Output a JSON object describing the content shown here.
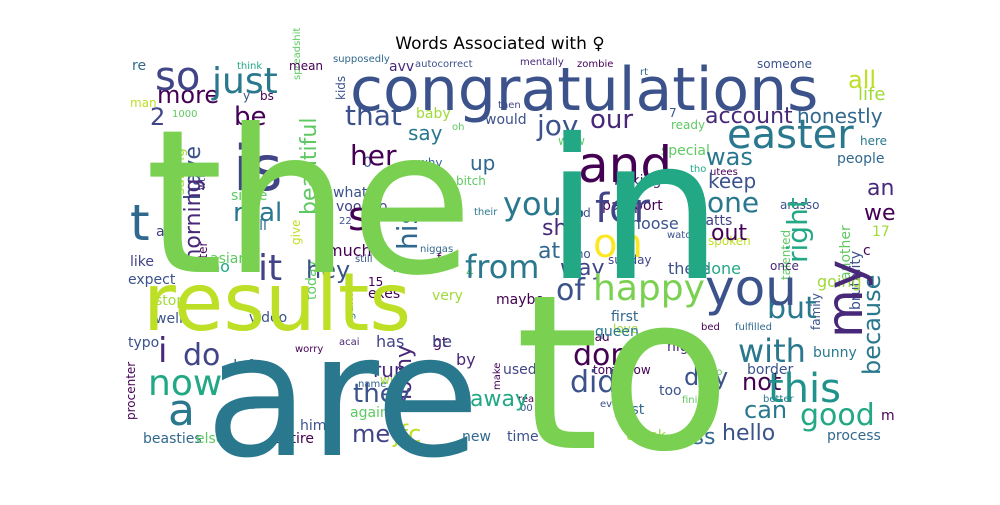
{
  "chart_data": {
    "type": "wordcloud",
    "title": "Words Associated with ♀",
    "words": [
      {
        "text": "the",
        "color": "#7ad151"
      },
      {
        "text": "in",
        "color": "#22a884"
      },
      {
        "text": "are",
        "color": "#2a788e"
      },
      {
        "text": "to",
        "color": "#7ad151"
      },
      {
        "text": "results",
        "color": "#bddf26"
      },
      {
        "text": "congratulations",
        "color": "#3b528b"
      },
      {
        "text": "is",
        "color": "#414487"
      },
      {
        "text": "and",
        "color": "#440154"
      },
      {
        "text": "you",
        "color": "#3b528b"
      },
      {
        "text": "this",
        "color": "#21918c"
      },
      {
        "text": "easter",
        "color": "#2a788e"
      },
      {
        "text": "my",
        "color": "#482878"
      },
      {
        "text": "for",
        "color": "#414487"
      },
      {
        "text": "on",
        "color": "#fde725"
      },
      {
        "text": "so",
        "color": "#414487"
      },
      {
        "text": "just",
        "color": "#2a788e"
      },
      {
        "text": "happy",
        "color": "#7ad151"
      },
      {
        "text": "now",
        "color": "#22a884"
      },
      {
        "text": "your",
        "color": "#2a788e"
      },
      {
        "text": "a",
        "color": "#2a788e"
      },
      {
        "text": "it",
        "color": "#414487"
      },
      {
        "text": "from",
        "color": "#2a788e"
      },
      {
        "text": "of",
        "color": "#3b528b"
      },
      {
        "text": "with",
        "color": "#2a788e"
      },
      {
        "text": "good",
        "color": "#22a884"
      },
      {
        "text": "all",
        "color": "#bddf26"
      },
      {
        "text": "i",
        "color": "#482878"
      },
      {
        "text": "do",
        "color": "#414487"
      },
      {
        "text": "did",
        "color": "#3b528b"
      },
      {
        "text": "don",
        "color": "#440154"
      },
      {
        "text": "s",
        "color": "#440154"
      },
      {
        "text": "t",
        "color": "#31688e"
      },
      {
        "text": "be",
        "color": "#440154"
      },
      {
        "text": "more",
        "color": "#440154"
      },
      {
        "text": "2",
        "color": "#414487"
      },
      {
        "text": "that",
        "color": "#3b528b"
      },
      {
        "text": "joy",
        "color": "#3b528b"
      },
      {
        "text": "our",
        "color": "#482878"
      },
      {
        "text": "account",
        "color": "#482878"
      },
      {
        "text": "honestly",
        "color": "#31688e"
      },
      {
        "text": "life",
        "color": "#a0da39"
      },
      {
        "text": "her",
        "color": "#440154"
      },
      {
        "text": "his",
        "color": "#31688e"
      },
      {
        "text": "she",
        "color": "#482878"
      },
      {
        "text": "was",
        "color": "#2a788e"
      },
      {
        "text": "one",
        "color": "#2a788e"
      },
      {
        "text": "right",
        "color": "#22a884"
      },
      {
        "text": "out",
        "color": "#440154"
      },
      {
        "text": "but",
        "color": "#2a788e"
      },
      {
        "text": "because",
        "color": "#2a788e"
      },
      {
        "text": "have",
        "color": "#3b528b"
      },
      {
        "text": "morning",
        "color": "#482878"
      },
      {
        "text": "real",
        "color": "#2a788e"
      },
      {
        "text": "beautiful",
        "color": "#5ec962"
      },
      {
        "text": "hey",
        "color": "#3b528b"
      },
      {
        "text": "know",
        "color": "#22a884"
      },
      {
        "text": "at",
        "color": "#31688e"
      },
      {
        "text": "way",
        "color": "#414487"
      },
      {
        "text": "can",
        "color": "#2a788e"
      },
      {
        "text": "not",
        "color": "#440154"
      },
      {
        "text": "they",
        "color": "#3b528b"
      },
      {
        "text": "away",
        "color": "#22a884"
      },
      {
        "text": "day",
        "color": "#3b528b"
      },
      {
        "text": "me",
        "color": "#414487"
      },
      {
        "text": "ass",
        "color": "#31688e"
      },
      {
        "text": "hello",
        "color": "#3b528b"
      },
      {
        "text": "run",
        "color": "#482878"
      },
      {
        "text": "horny",
        "color": "#482878"
      },
      {
        "text": "jfc",
        "color": "#bddf26"
      },
      {
        "text": "up",
        "color": "#31688e"
      },
      {
        "text": "keep",
        "color": "#3b528b"
      },
      {
        "text": "an",
        "color": "#482878"
      },
      {
        "text": "we",
        "color": "#440154"
      },
      {
        "text": "say",
        "color": "#2a788e"
      },
      {
        "text": "people",
        "color": "#31688e"
      },
      {
        "text": "bunny",
        "color": "#2a788e"
      },
      {
        "text": "process",
        "color": "#31688e"
      },
      {
        "text": "m",
        "color": "#440154"
      },
      {
        "text": "queen",
        "color": "#2a788e"
      },
      {
        "text": "by",
        "color": "#482878"
      },
      {
        "text": "been",
        "color": "#414487"
      },
      {
        "text": "time",
        "color": "#3b528b"
      },
      {
        "text": "new",
        "color": "#31688e"
      },
      {
        "text": "thank",
        "color": "#a0da39"
      },
      {
        "text": "him",
        "color": "#3b528b"
      },
      {
        "text": "entire",
        "color": "#440154"
      },
      {
        "text": "beasties",
        "color": "#31688e"
      },
      {
        "text": "typo",
        "color": "#3b528b"
      },
      {
        "text": "left",
        "color": "#2a788e"
      },
      {
        "text": "video",
        "color": "#3b528b"
      },
      {
        "text": "well",
        "color": "#3b528b"
      },
      {
        "text": "stop",
        "color": "#a0da39"
      },
      {
        "text": "like",
        "color": "#414487"
      },
      {
        "text": "no",
        "color": "#22a884"
      },
      {
        "text": "asian",
        "color": "#5ec962"
      },
      {
        "text": "much",
        "color": "#440154"
      },
      {
        "text": "what",
        "color": "#3b528b"
      },
      {
        "text": "voodoo",
        "color": "#414487"
      },
      {
        "text": "since",
        "color": "#5ec962"
      },
      {
        "text": "tell",
        "color": "#31688e"
      },
      {
        "text": "as",
        "color": "#414487"
      },
      {
        "text": "expect",
        "color": "#3b528b"
      },
      {
        "text": "has",
        "color": "#414487"
      },
      {
        "text": "he",
        "color": "#414487"
      },
      {
        "text": "very",
        "color": "#a0da39"
      },
      {
        "text": "maybe",
        "color": "#440154"
      },
      {
        "text": "exes",
        "color": "#440154"
      },
      {
        "text": "15",
        "color": "#440154"
      },
      {
        "text": "today",
        "color": "#5ec962"
      },
      {
        "text": "first",
        "color": "#31688e"
      },
      {
        "text": "love",
        "color": "#a0da39"
      },
      {
        "text": "night",
        "color": "#482878"
      },
      {
        "text": "tomorrow",
        "color": "#440154"
      },
      {
        "text": "used",
        "color": "#414487"
      },
      {
        "text": "laulau",
        "color": "#440154"
      },
      {
        "text": "gt",
        "color": "#440154"
      },
      {
        "text": "too",
        "color": "#3b528b"
      },
      {
        "text": "post",
        "color": "#31688e"
      },
      {
        "text": "border",
        "color": "#3b528b"
      },
      {
        "text": "there",
        "color": "#3b528b"
      },
      {
        "text": "alone",
        "color": "#22a884"
      },
      {
        "text": "going",
        "color": "#a0da39"
      },
      {
        "text": "sunday",
        "color": "#414487"
      },
      {
        "text": "choose",
        "color": "#3b528b"
      },
      {
        "text": "passport",
        "color": "#440154"
      },
      {
        "text": "special",
        "color": "#5ec962"
      },
      {
        "text": "find",
        "color": "#3b528b"
      },
      {
        "text": "watts",
        "color": "#414487"
      },
      {
        "text": "spoken",
        "color": "#bddf26"
      },
      {
        "text": "17",
        "color": "#a0da39"
      },
      {
        "text": "baby",
        "color": "#a0da39"
      },
      {
        "text": "would",
        "color": "#3b528b"
      },
      {
        "text": "baking",
        "color": "#482878"
      },
      {
        "text": "ready",
        "color": "#5ec962"
      },
      {
        "text": "here",
        "color": "#2a788e"
      },
      {
        "text": "someone",
        "color": "#3b528b"
      },
      {
        "text": "mean",
        "color": "#440154"
      },
      {
        "text": "re",
        "color": "#31688e"
      },
      {
        "text": "think",
        "color": "#22a884"
      },
      {
        "text": "supposedly",
        "color": "#31688e"
      },
      {
        "text": "mentally",
        "color": "#482878"
      },
      {
        "text": "zombie",
        "color": "#440154"
      },
      {
        "text": "man",
        "color": "#bddf26"
      },
      {
        "text": "1000",
        "color": "#5ec962"
      },
      {
        "text": "kids",
        "color": "#3b528b"
      },
      {
        "text": "bs",
        "color": "#440154"
      },
      {
        "text": "y",
        "color": "#3b528b"
      },
      {
        "text": "wow",
        "color": "#5ec962"
      },
      {
        "text": "why",
        "color": "#31688e"
      },
      {
        "text": "bitch",
        "color": "#5ec962"
      },
      {
        "text": "go",
        "color": "#31688e"
      },
      {
        "text": "who",
        "color": "#3b528b"
      },
      {
        "text": "niggas",
        "color": "#31688e"
      },
      {
        "text": "give",
        "color": "#bddf26"
      },
      {
        "text": "salting",
        "color": "#a0da39"
      },
      {
        "text": "after",
        "color": "#440154"
      },
      {
        "text": "still",
        "color": "#3b528b"
      },
      {
        "text": "another",
        "color": "#5ec962"
      },
      {
        "text": "talented",
        "color": "#5ec962"
      },
      {
        "text": "once",
        "color": "#482878"
      },
      {
        "text": "brutality",
        "color": "#3b528b"
      },
      {
        "text": "family",
        "color": "#3b528b"
      },
      {
        "text": "fulfilled",
        "color": "#31688e"
      },
      {
        "text": "bed",
        "color": "#440154"
      },
      {
        "text": "polo",
        "color": "#5ec962"
      },
      {
        "text": "finish",
        "color": "#5ec962"
      },
      {
        "text": "better",
        "color": "#2a788e"
      },
      {
        "text": "even",
        "color": "#3b528b"
      },
      {
        "text": "really",
        "color": "#440154"
      },
      {
        "text": "make",
        "color": "#440154"
      },
      {
        "text": "will",
        "color": "#a0da39"
      },
      {
        "text": "or",
        "color": "#3b528b"
      },
      {
        "text": "worry",
        "color": "#440154"
      },
      {
        "text": "acai",
        "color": "#482878"
      },
      {
        "text": "game",
        "color": "#2a788e"
      },
      {
        "text": "procenter",
        "color": "#440154"
      },
      {
        "text": "ll",
        "color": "#3b528b"
      },
      {
        "text": "again",
        "color": "#5ec962"
      },
      {
        "text": "else",
        "color": "#5ec962"
      },
      {
        "text": "00",
        "color": "#3b528b"
      },
      {
        "text": "autocorrect",
        "color": "#3b528b"
      },
      {
        "text": "arasso",
        "color": "#3b528b"
      },
      {
        "text": "rt",
        "color": "#31688e"
      },
      {
        "text": "then",
        "color": "#414487"
      },
      {
        "text": "7",
        "color": "#3b528b"
      },
      {
        "text": "tho",
        "color": "#22a884"
      },
      {
        "text": "utees",
        "color": "#440154"
      },
      {
        "text": "watch",
        "color": "#3b528b"
      },
      {
        "text": "their",
        "color": "#2a788e"
      },
      {
        "text": "spreadshit",
        "color": "#5ec962"
      },
      {
        "text": "wtf",
        "color": "#414487"
      },
      {
        "text": "avv",
        "color": "#482878"
      },
      {
        "text": "22",
        "color": "#3b528b"
      },
      {
        "text": "f",
        "color": "#440154"
      },
      {
        "text": "4",
        "color": "#5ec962"
      },
      {
        "text": "oh",
        "color": "#5ec962"
      },
      {
        "text": "0",
        "color": "#3b528b"
      },
      {
        "text": "c",
        "color": "#440154"
      },
      {
        "text": "name",
        "color": "#31688e"
      }
    ]
  }
}
